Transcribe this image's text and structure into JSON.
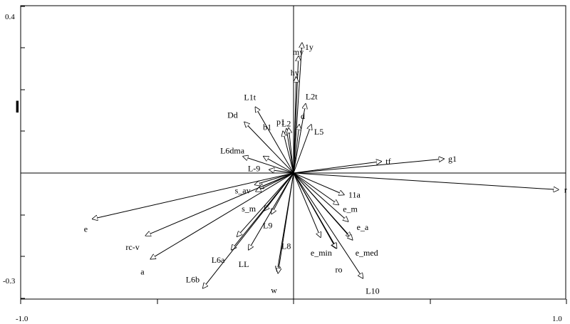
{
  "chart_data": {
    "type": "scatter",
    "subtype": "biplot-arrows",
    "xlim": [
      -1.0,
      1.0
    ],
    "ylim": [
      -0.3,
      0.4
    ],
    "x_tick_labels": [
      "-1.0",
      "1.0"
    ],
    "y_tick_labels": [
      "0.4",
      "-0.3"
    ],
    "x_ticks": [
      -1.0,
      -0.5,
      0.0,
      0.5,
      1.0
    ],
    "y_ticks": [
      -0.3,
      -0.2,
      -0.1,
      0.0,
      0.1,
      0.2,
      0.3,
      0.4
    ],
    "axis_marker": "I",
    "grid": false,
    "arrows": [
      {
        "label": "1y",
        "x": 0.031,
        "y": 0.312
      },
      {
        "label": "my",
        "x": 0.018,
        "y": 0.28
      },
      {
        "label": "hy",
        "x": 0.01,
        "y": 0.23
      },
      {
        "label": "L1t",
        "x": -0.14,
        "y": 0.158
      },
      {
        "label": "L2t",
        "x": 0.044,
        "y": 0.166
      },
      {
        "label": "Dd",
        "x": -0.18,
        "y": 0.122
      },
      {
        "label": "b1",
        "x": -0.039,
        "y": 0.1
      },
      {
        "label": "p1",
        "x": -0.026,
        "y": 0.106
      },
      {
        "label": "L2",
        "x": -0.018,
        "y": 0.108
      },
      {
        "label": "d",
        "x": 0.021,
        "y": 0.116
      },
      {
        "label": "L5",
        "x": 0.065,
        "y": 0.116
      },
      {
        "label": "L6dma",
        "x": -0.185,
        "y": 0.04
      },
      {
        "label": "",
        "x": -0.11,
        "y": 0.04
      },
      {
        "label": "L-9",
        "x": -0.089,
        "y": 0.008
      },
      {
        "label": "tf",
        "x": 0.322,
        "y": 0.028
      },
      {
        "label": "g1",
        "x": 0.551,
        "y": 0.034
      },
      {
        "label": "r",
        "x": 0.971,
        "y": -0.04
      },
      {
        "label": "s_av",
        "x": -0.142,
        "y": -0.028
      },
      {
        "label": "",
        "x": -0.128,
        "y": -0.036
      },
      {
        "label": "s_m",
        "x": -0.138,
        "y": -0.044
      },
      {
        "label": "11a",
        "x": 0.185,
        "y": -0.052
      },
      {
        "label": "e_m",
        "x": 0.165,
        "y": -0.076
      },
      {
        "label": "e_a",
        "x": 0.2,
        "y": -0.116
      },
      {
        "label": "",
        "x": 0.21,
        "y": -0.154
      },
      {
        "label": "e_med",
        "x": 0.216,
        "y": -0.16
      },
      {
        "label": "e_min",
        "x": 0.099,
        "y": -0.154
      },
      {
        "label": "",
        "x": 0.155,
        "y": -0.18
      },
      {
        "label": "ro",
        "x": 0.158,
        "y": -0.18
      },
      {
        "label": "L10",
        "x": 0.254,
        "y": -0.252
      },
      {
        "label": "L8",
        "x": -0.06,
        "y": -0.236
      },
      {
        "label": "L9",
        "x": -0.081,
        "y": -0.098
      },
      {
        "label": "",
        "x": -0.107,
        "y": -0.09
      },
      {
        "label": "LL",
        "x": -0.165,
        "y": -0.184
      },
      {
        "label": "",
        "x": -0.207,
        "y": -0.152
      },
      {
        "label": "L6a",
        "x": -0.228,
        "y": -0.184
      },
      {
        "label": "L6b",
        "x": -0.332,
        "y": -0.276
      },
      {
        "label": "e",
        "x": -0.737,
        "y": -0.11
      },
      {
        "label": "rc-v",
        "x": -0.542,
        "y": -0.15
      },
      {
        "label": "a",
        "x": -0.524,
        "y": -0.206
      },
      {
        "label": "w",
        "x": -0.057,
        "y": -0.24
      }
    ],
    "labels_offset_px": []
  }
}
